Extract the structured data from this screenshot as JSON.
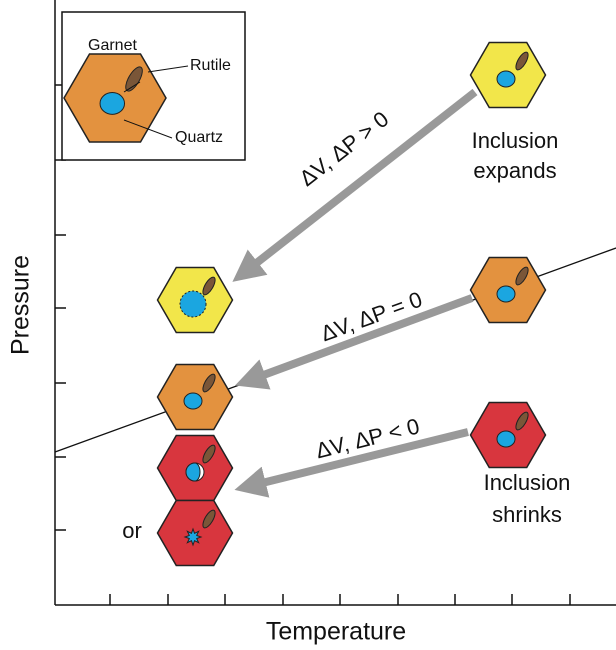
{
  "inset": {
    "garnet": "Garnet",
    "rutile": "Rutile",
    "quartz": "Quartz"
  },
  "annotations": {
    "expands_1": "Inclusion",
    "expands_2": "expands",
    "positive": "ΔV, ΔP > 0",
    "zero": "ΔV, ΔP = 0",
    "negative": "ΔV, ΔP < 0",
    "shrinks_1": "Inclusion",
    "shrinks_2": "shrinks",
    "or": "or"
  },
  "axes": {
    "y_label": "Pressure",
    "x_label": "Temperature"
  }
}
